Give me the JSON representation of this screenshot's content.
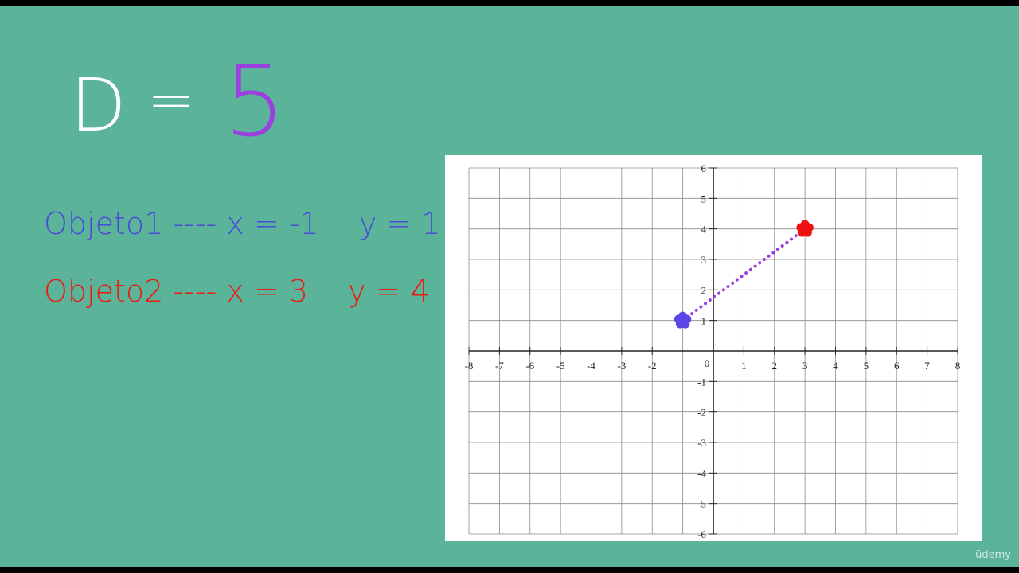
{
  "formula": {
    "lhs": "D",
    "eq": "=",
    "value": "5"
  },
  "objects": [
    {
      "name": "Objeto1",
      "sep": "----",
      "xdef": "x = -1",
      "ydef": "y = 1",
      "color": "#4b4ad8",
      "x": -1,
      "y": 1
    },
    {
      "name": "Objeto2",
      "sep": "----",
      "xdef": "x = 3",
      "ydef": "y = 4",
      "color": "#ea1d14",
      "x": 3,
      "y": 4
    }
  ],
  "colors": {
    "background": "#5bb39a",
    "formula_value": "#9b3fe0",
    "segment": "#9b3fe0",
    "point1": "#5a46e6",
    "point2": "#ee1111"
  },
  "chart_data": {
    "type": "scatter",
    "xlim": [
      -8,
      8
    ],
    "ylim": [
      -6,
      6
    ],
    "x_ticks": [
      "-8",
      "-7",
      "-6",
      "-5",
      "-4",
      "-3",
      "-2",
      "1",
      "2",
      "3",
      "4",
      "5",
      "6",
      "7",
      "8"
    ],
    "y_ticks": [
      "6",
      "5",
      "4",
      "3",
      "2",
      "1",
      "-1",
      "-2",
      "-3",
      "-4",
      "-5",
      "-6"
    ],
    "origin_label": "0",
    "grid": true,
    "points": [
      {
        "x": -1,
        "y": 1
      },
      {
        "x": 3,
        "y": 4
      }
    ],
    "segment": {
      "from": [
        -1,
        1
      ],
      "to": [
        3,
        4
      ],
      "style": "dotted"
    }
  },
  "watermark": "ūdemy"
}
